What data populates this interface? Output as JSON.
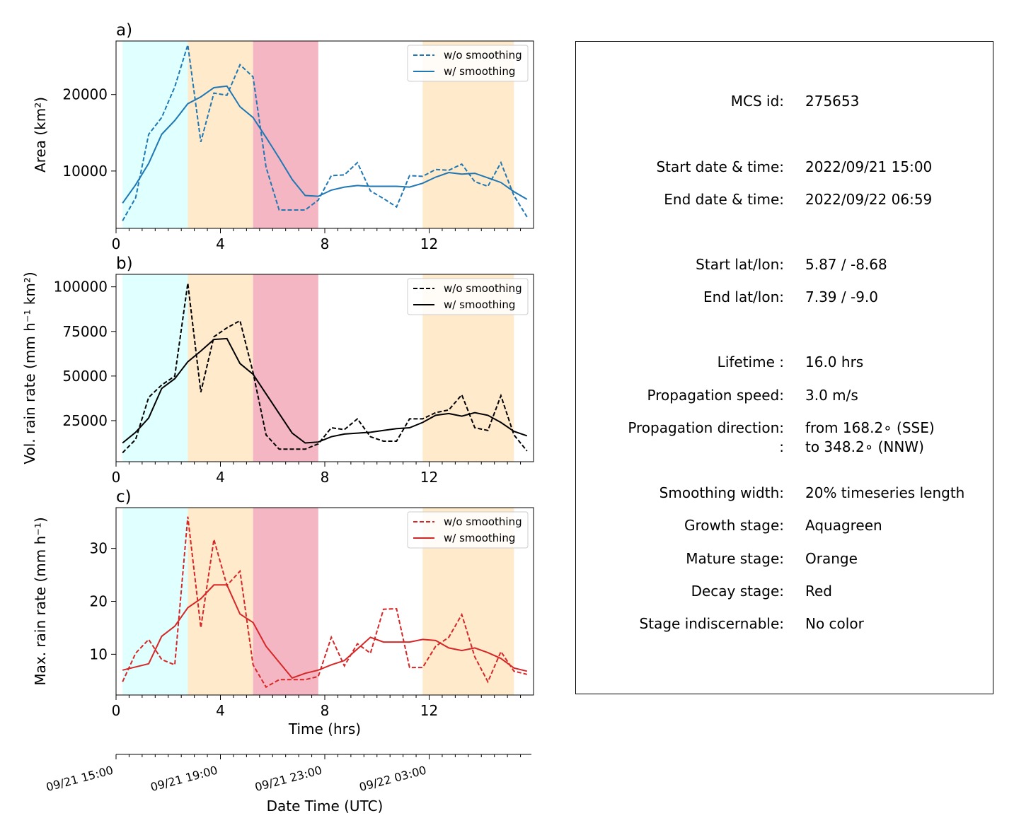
{
  "colors": {
    "area": "#1f77b4",
    "vol": "#000000",
    "max": "#d62728",
    "growth": "#e0ffff",
    "mature": "#ffebcc",
    "decay": "#f4b6c2"
  },
  "chart_data": [
    {
      "type": "line",
      "panel_label": "a)",
      "ylabel": "Area  (km²)",
      "xlim": [
        0,
        16
      ],
      "ylim": [
        2500,
        27000
      ],
      "xticks": [
        "0",
        "4",
        "8",
        "12"
      ],
      "yticks": [
        "10000",
        "20000"
      ],
      "legend": "top-right",
      "x": [
        0.25,
        0.75,
        1.25,
        1.75,
        2.25,
        2.75,
        3.25,
        3.75,
        4.25,
        4.75,
        5.25,
        5.75,
        6.25,
        6.75,
        7.25,
        7.75,
        8.25,
        8.75,
        9.25,
        9.75,
        10.25,
        10.75,
        11.25,
        11.75,
        12.25,
        12.75,
        13.25,
        13.75,
        14.25,
        14.75,
        15.25,
        15.75
      ],
      "series": [
        {
          "name": "w/o smoothing",
          "style": "dashed",
          "values": [
            3500,
            6500,
            14800,
            17000,
            21000,
            26500,
            13800,
            20200,
            19900,
            23900,
            22300,
            10500,
            4900,
            4900,
            4900,
            6200,
            9400,
            9500,
            11100,
            7400,
            6400,
            5300,
            9400,
            9300,
            10200,
            10100,
            10900,
            8600,
            8000,
            11100,
            6800,
            4000
          ]
        },
        {
          "name": "w/ smoothing",
          "style": "solid",
          "values": [
            5800,
            8200,
            11000,
            14800,
            16600,
            18800,
            19700,
            20900,
            21100,
            18400,
            17000,
            14400,
            11700,
            8900,
            6800,
            6700,
            7500,
            7900,
            8100,
            8000,
            8000,
            8000,
            7900,
            8400,
            9200,
            9800,
            9600,
            9700,
            9100,
            8500,
            7300,
            6300
          ]
        }
      ],
      "stages": [
        {
          "stage": "growth",
          "from": 0.25,
          "to": 2.75
        },
        {
          "stage": "mature",
          "from": 2.75,
          "to": 5.25
        },
        {
          "stage": "decay",
          "from": 5.25,
          "to": 7.75
        },
        {
          "stage": "mature",
          "from": 11.75,
          "to": 15.25
        }
      ]
    },
    {
      "type": "line",
      "panel_label": "b)",
      "ylabel": "Vol. rain rate (mm h⁻¹ km²)",
      "xlim": [
        0,
        16
      ],
      "ylim": [
        2000,
        107000
      ],
      "xticks": [
        "0",
        "4",
        "8",
        "12"
      ],
      "yticks": [
        "25000",
        "50000",
        "75000",
        "100000"
      ],
      "legend": "top-right",
      "x": [
        0.25,
        0.75,
        1.25,
        1.75,
        2.25,
        2.75,
        3.25,
        3.75,
        4.25,
        4.75,
        5.25,
        5.75,
        6.25,
        6.75,
        7.25,
        7.75,
        8.25,
        8.75,
        9.25,
        9.75,
        10.25,
        10.75,
        11.25,
        11.75,
        12.25,
        12.75,
        13.25,
        13.75,
        14.25,
        14.75,
        15.25,
        15.75
      ],
      "series": [
        {
          "name": "w/o smoothing",
          "style": "dashed",
          "values": [
            7000,
            14500,
            38000,
            45000,
            50000,
            102000,
            41000,
            72000,
            77000,
            81000,
            52000,
            17000,
            9000,
            9000,
            9000,
            12000,
            21000,
            20000,
            26000,
            16000,
            13500,
            13500,
            26000,
            26000,
            29500,
            31000,
            39500,
            21000,
            19500,
            39000,
            17000,
            8000
          ]
        },
        {
          "name": "w/ smoothing",
          "style": "solid",
          "values": [
            12500,
            18500,
            26500,
            43000,
            48500,
            58000,
            64000,
            70500,
            71000,
            57000,
            51000,
            40000,
            29000,
            18000,
            12500,
            13000,
            16000,
            17500,
            18000,
            18500,
            19500,
            20500,
            21000,
            24000,
            28000,
            29000,
            27500,
            29500,
            28000,
            24000,
            19000,
            16500
          ]
        }
      ],
      "stages": [
        {
          "stage": "growth",
          "from": 0.25,
          "to": 2.75
        },
        {
          "stage": "mature",
          "from": 2.75,
          "to": 5.25
        },
        {
          "stage": "decay",
          "from": 5.25,
          "to": 7.75
        },
        {
          "stage": "mature",
          "from": 11.75,
          "to": 15.25
        }
      ]
    },
    {
      "type": "line",
      "panel_label": "c)",
      "ylabel": "Max. rain rate  (mm h⁻¹)",
      "xlabel": "Time (hrs)",
      "xlim": [
        0,
        16
      ],
      "ylim": [
        2.3,
        37.7
      ],
      "xticks": [
        "0",
        "4",
        "8",
        "12"
      ],
      "yticks": [
        "10",
        "20",
        "30"
      ],
      "legend": "top-right",
      "x": [
        0.25,
        0.75,
        1.25,
        1.75,
        2.25,
        2.75,
        3.25,
        3.75,
        4.25,
        4.75,
        5.25,
        5.75,
        6.25,
        6.75,
        7.25,
        7.75,
        8.25,
        8.75,
        9.25,
        9.75,
        10.25,
        10.75,
        11.25,
        11.75,
        12.25,
        12.75,
        13.25,
        13.75,
        14.25,
        14.75,
        15.25,
        15.75
      ],
      "series": [
        {
          "name": "w/o smoothing",
          "style": "dashed",
          "values": [
            4.8,
            10.2,
            12.8,
            9.0,
            8.0,
            36.0,
            15.0,
            31.7,
            23.0,
            25.7,
            8.0,
            3.8,
            5.2,
            5.2,
            5.2,
            5.8,
            13.2,
            7.8,
            12.0,
            10.2,
            18.5,
            18.6,
            7.5,
            7.5,
            11.5,
            13.2,
            17.5,
            9.5,
            4.8,
            10.5,
            6.8,
            6.2
          ]
        },
        {
          "name": "w/ smoothing",
          "style": "solid",
          "values": [
            7.0,
            7.6,
            8.2,
            13.4,
            15.3,
            18.8,
            20.5,
            23.1,
            23.1,
            17.6,
            16.0,
            11.5,
            8.5,
            5.5,
            6.4,
            7.0,
            8.0,
            8.8,
            11.0,
            13.2,
            12.3,
            12.3,
            12.3,
            12.8,
            12.6,
            11.2,
            10.7,
            11.2,
            10.3,
            9.2,
            7.4,
            6.8
          ]
        }
      ],
      "stages": [
        {
          "stage": "growth",
          "from": 0.25,
          "to": 2.75
        },
        {
          "stage": "mature",
          "from": 2.75,
          "to": 5.25
        },
        {
          "stage": "decay",
          "from": 5.25,
          "to": 7.75
        },
        {
          "stage": "mature",
          "from": 11.75,
          "to": 15.25
        }
      ]
    }
  ],
  "datetime_axis": {
    "xlabel": "Date Time (UTC)",
    "ticks": [
      {
        "hours": 0,
        "label": "09/21 15:00"
      },
      {
        "hours": 4,
        "label": "09/21 19:00"
      },
      {
        "hours": 8,
        "label": "09/21 23:00"
      },
      {
        "hours": 12,
        "label": "09/22 03:00"
      }
    ]
  },
  "info": {
    "mcs_id_label": "MCS id:",
    "mcs_id": "275653",
    "start_dt_label": "Start date & time:",
    "start_dt": "2022/09/21 15:00",
    "end_dt_label": "End date & time:",
    "end_dt": "2022/09/22 06:59",
    "start_ll_label": "Start lat/lon:",
    "start_ll": "5.87 / -8.68",
    "end_ll_label": "End lat/lon:",
    "end_ll": "7.39 / -9.0",
    "lifetime_label": "Lifetime :",
    "lifetime": "16.0 hrs",
    "speed_label": "Propagation speed:",
    "speed": "3.0 m/s",
    "dir_label": "Propagation direction:",
    "dir_from": "from 168.2∘ (SSE)",
    "dir_label2": ":",
    "dir_to": "to   348.2∘ (NNW)",
    "smooth_label": "Smoothing width:",
    "smooth": "20% timeseries length",
    "growth_label": "Growth stage:",
    "growth": "Aquagreen",
    "mature_label": "Mature stage:",
    "mature": "Orange",
    "decay_label": "Decay stage:",
    "decay": "Red",
    "indisc_label": "Stage indiscernable:",
    "indisc": "No color"
  }
}
